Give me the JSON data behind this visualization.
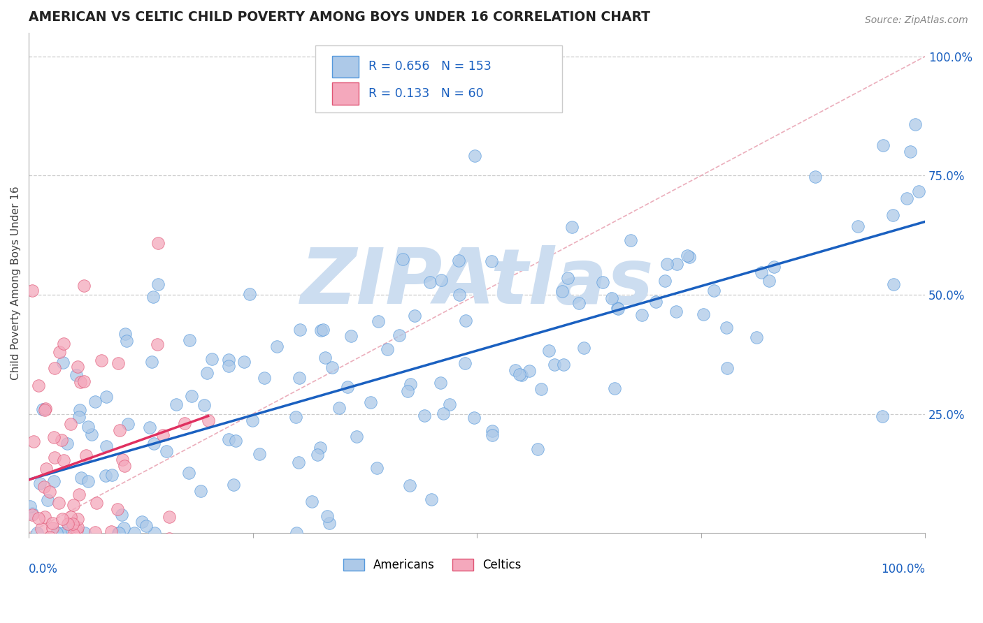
{
  "title": "AMERICAN VS CELTIC CHILD POVERTY AMONG BOYS UNDER 16 CORRELATION CHART",
  "source": "Source: ZipAtlas.com",
  "ylabel": "Child Poverty Among Boys Under 16",
  "legend_label_1": "Americans",
  "legend_label_2": "Celtics",
  "R1": "0.656",
  "N1": "153",
  "R2": "0.133",
  "N2": "60",
  "color_americans": "#adc9e8",
  "color_celtics": "#f4a8bc",
  "color_americans_edge": "#5599dd",
  "color_celtics_edge": "#e05575",
  "color_americans_line": "#1a60c0",
  "color_celtics_line": "#e03060",
  "color_diag_line": "#e8a0b0",
  "watermark": "ZIPAtlas",
  "watermark_color": "#ccddf0",
  "background_color": "#ffffff",
  "grid_color": "#cccccc",
  "title_color": "#222222",
  "label_color": "#1a60c0",
  "xlim": [
    0.0,
    1.0
  ],
  "ylim": [
    0.0,
    1.05
  ],
  "right_yticks": [
    1.0,
    0.75,
    0.5,
    0.25
  ],
  "right_yticklabels": [
    "100.0%",
    "75.0%",
    "50.0%",
    "25.0%"
  ]
}
